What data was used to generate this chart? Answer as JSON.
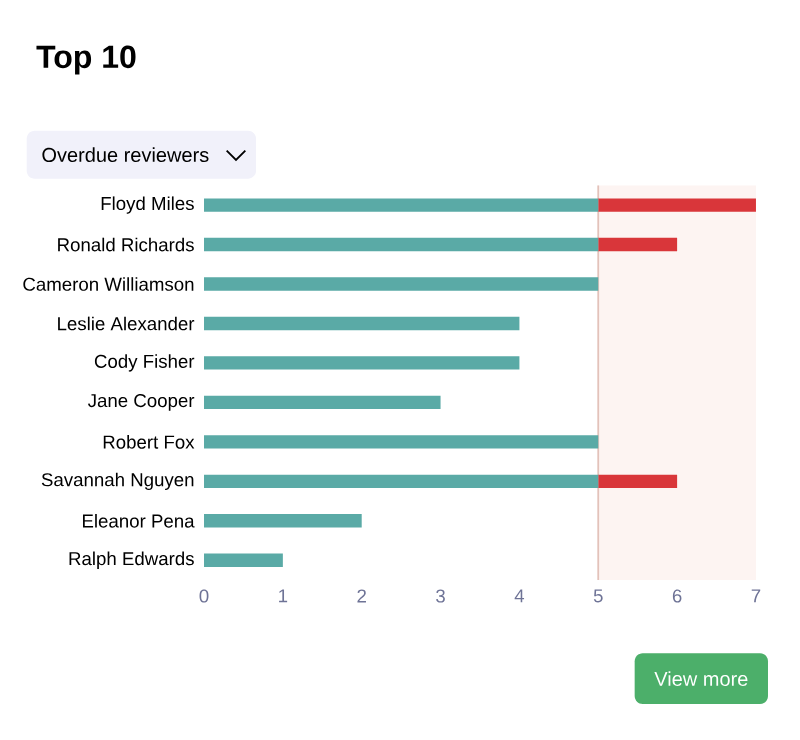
{
  "chart_data": {
    "type": "bar",
    "orientation": "horizontal",
    "stacked": true,
    "title": "Top 10",
    "categories": [
      "Floyd Miles",
      "Ronald Richards",
      "Cameron Williamson",
      "Leslie Alexander",
      "Cody Fisher",
      "Jane Cooper",
      "Robert Fox",
      "Savannah Nguyen",
      "Eleanor Pena",
      "Ralph Edwards"
    ],
    "series": [
      {
        "color": "#5aaaa6",
        "values": [
          5,
          5,
          5,
          4,
          4,
          3,
          5,
          5,
          2,
          1
        ]
      },
      {
        "color": "#d9363a",
        "values": [
          2,
          1,
          0,
          0,
          0,
          0,
          0,
          1,
          0,
          0
        ]
      }
    ],
    "xlim": [
      0,
      7
    ],
    "xticks": [
      0,
      1,
      2,
      3,
      4,
      5,
      6,
      7
    ],
    "ref_lines": [
      {
        "axis": "x",
        "value": 5,
        "color": "#e3c2ba"
      }
    ],
    "bands": [
      {
        "axis": "x",
        "from": 5,
        "to": 7,
        "color": "#fdf4f2"
      }
    ],
    "grid": false,
    "annotations": [
      "Overdue reviewers",
      "View more"
    ]
  }
}
